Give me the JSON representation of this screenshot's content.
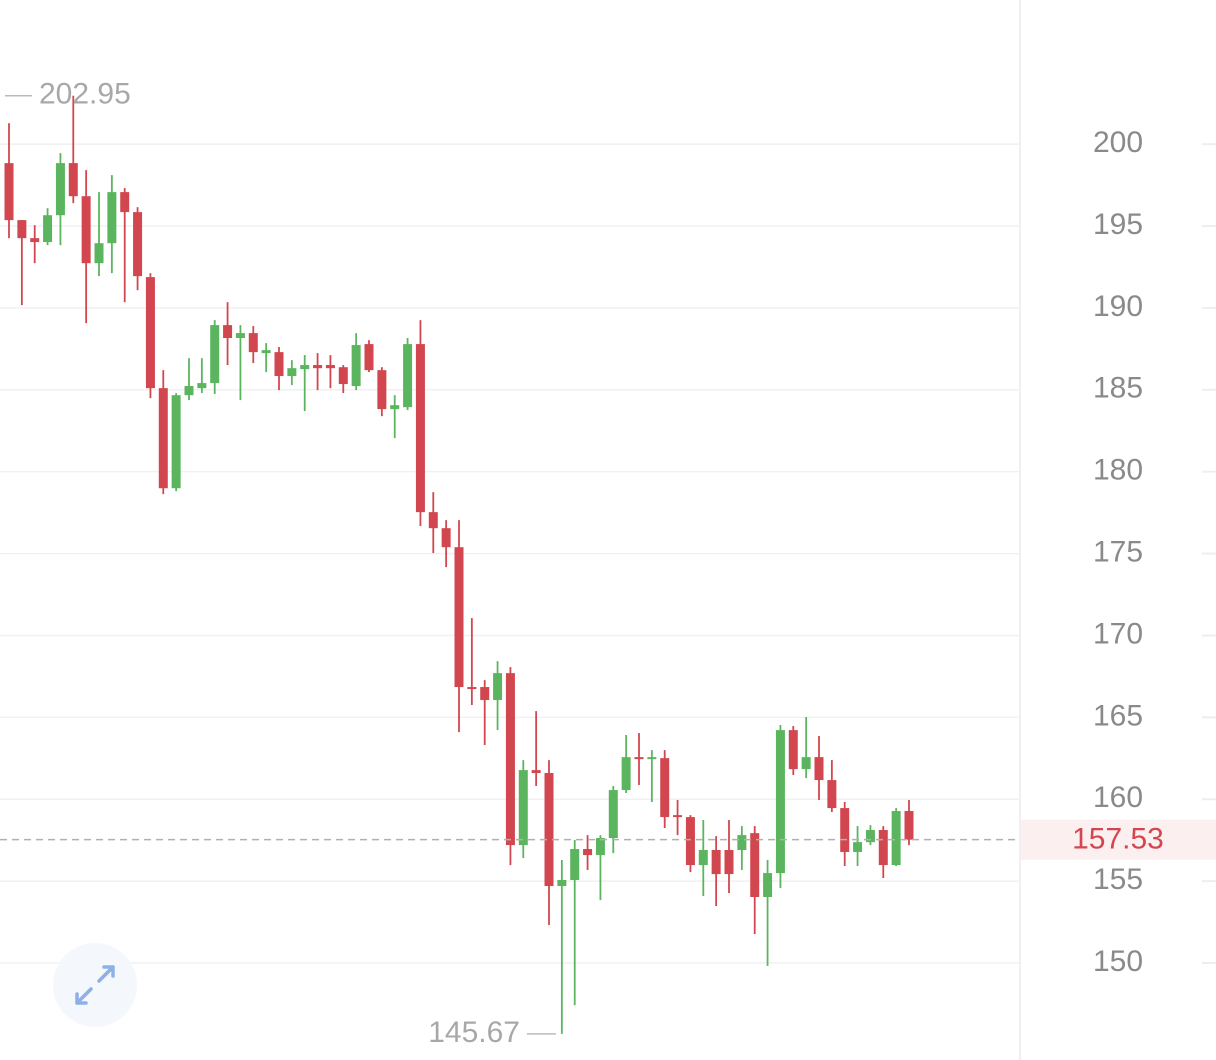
{
  "chart_data": {
    "type": "candlestick",
    "open": [
      198.84,
      195.36,
      194.26,
      194.02,
      195.66,
      198.84,
      196.82,
      192.73,
      193.95,
      197.07,
      195.85,
      191.88,
      185.1,
      178.99,
      184.67,
      185.1,
      185.41,
      188.95,
      188.16,
      188.46,
      187.24,
      187.3,
      185.84,
      186.26,
      186.51,
      186.51,
      186.38,
      185.23,
      187.79,
      186.2,
      183.82,
      183.94,
      187.79,
      177.53,
      176.55,
      175.39,
      166.85,
      166.85,
      166.06,
      167.7,
      157.2,
      161.78,
      161.6,
      154.7,
      155.07,
      156.96,
      156.59,
      157.63,
      160.56,
      162.57,
      162.51,
      162.51,
      159.03,
      158.91,
      155.98,
      156.9,
      156.9,
      156.9,
      157.93,
      154.03,
      155.49,
      164.22,
      161.84,
      162.57,
      161.17,
      159.46,
      156.78,
      157.38,
      158.12,
      155.98,
      159.28
    ],
    "high": [
      201.28,
      195.36,
      195.05,
      196.09,
      199.45,
      202.95,
      198.41,
      197.07,
      198.11,
      197.31,
      196.15,
      192.12,
      186.2,
      184.8,
      186.93,
      186.93,
      189.25,
      190.35,
      188.95,
      188.89,
      187.85,
      187.61,
      186.81,
      187.12,
      187.24,
      187.12,
      186.51,
      188.46,
      188.03,
      186.38,
      184.67,
      188.16,
      189.25,
      178.75,
      177.04,
      177.04,
      171.06,
      167.27,
      168.43,
      168.07,
      162.39,
      165.38,
      162.39,
      156.29,
      157.51,
      157.81,
      157.81,
      160.81,
      163.92,
      164.04,
      163.0,
      163.0,
      159.95,
      159.03,
      158.73,
      157.75,
      158.73,
      158.36,
      158.36,
      156.29,
      164.53,
      164.47,
      165.02,
      163.86,
      162.39,
      159.83,
      158.36,
      158.42,
      158.36,
      159.46,
      159.95
    ],
    "low": [
      194.26,
      190.17,
      192.73,
      193.83,
      193.83,
      196.4,
      189.07,
      191.94,
      192.12,
      190.35,
      191.08,
      184.49,
      178.63,
      178.81,
      184.37,
      184.8,
      184.74,
      186.51,
      184.37,
      186.63,
      186.08,
      184.98,
      185.29,
      183.7,
      184.98,
      185.1,
      184.8,
      184.98,
      186.08,
      183.39,
      182.05,
      183.76,
      176.68,
      175.03,
      174.17,
      164.1,
      165.75,
      163.31,
      164.22,
      155.98,
      156.41,
      160.81,
      152.32,
      145.67,
      147.43,
      155.68,
      153.84,
      156.71,
      160.38,
      160.87,
      159.83,
      158.24,
      157.81,
      155.55,
      154.09,
      153.48,
      154.27,
      155.68,
      151.77,
      149.82,
      154.58,
      161.48,
      161.29,
      159.95,
      159.22,
      155.92,
      155.92,
      157.2,
      155.19,
      155.92,
      157.2
    ],
    "close": [
      195.36,
      194.26,
      194.02,
      195.66,
      198.84,
      196.82,
      192.73,
      193.95,
      197.07,
      195.85,
      191.94,
      185.1,
      178.99,
      184.67,
      185.23,
      185.41,
      188.95,
      188.16,
      188.46,
      187.3,
      187.42,
      185.84,
      186.32,
      186.51,
      186.32,
      186.32,
      185.35,
      187.73,
      186.2,
      183.82,
      184.06,
      187.79,
      177.53,
      176.55,
      175.39,
      166.85,
      166.73,
      166.06,
      167.7,
      157.2,
      161.78,
      161.6,
      154.7,
      155.07,
      156.96,
      156.59,
      157.63,
      160.56,
      162.57,
      162.51,
      162.57,
      158.91,
      158.91,
      155.98,
      156.9,
      155.43,
      155.43,
      157.81,
      154.03,
      155.49,
      164.22,
      161.84,
      162.57,
      161.17,
      159.46,
      156.78,
      157.38,
      158.12,
      155.98,
      159.28,
      157.53
    ],
    "up_color": "#5bb55e",
    "down_color": "#d2474f",
    "ylim": [
      144.2,
      208.8
    ],
    "yticks": [
      150,
      155,
      160,
      165,
      170,
      175,
      180,
      185,
      190,
      195,
      200
    ],
    "grid": true,
    "axis_side": "right",
    "max_marker": 202.95,
    "min_marker": 145.67,
    "last_price": 157.53
  }
}
